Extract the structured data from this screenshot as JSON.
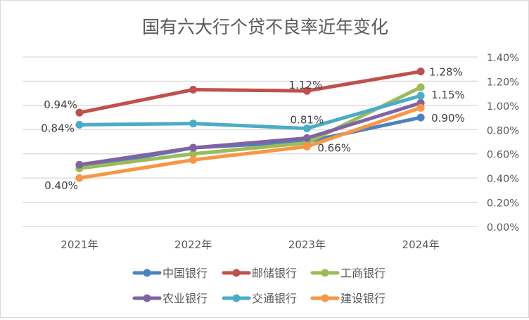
{
  "chart_data": {
    "type": "line",
    "title": "国有六大行个贷不良率近年变化",
    "xlabel": "",
    "ylabel": "",
    "categories": [
      "2021年",
      "2022年",
      "2023年",
      "2024年"
    ],
    "y_axis": {
      "position": "right",
      "ylim": [
        0,
        1.4
      ],
      "ticks": [
        0,
        0.2,
        0.4,
        0.6,
        0.8,
        1.0,
        1.2,
        1.4
      ],
      "tick_labels": [
        "0.00%",
        "0.20%",
        "0.40%",
        "0.60%",
        "0.80%",
        "1.00%",
        "1.20%",
        "1.40%"
      ],
      "unit": "%"
    },
    "grid": true,
    "legend_position": "bottom",
    "series": [
      {
        "name": "中国银行",
        "color": "#4f81bd",
        "values": [
          0.48,
          0.65,
          0.7,
          0.9
        ],
        "labels": [
          null,
          null,
          null,
          "0.90%"
        ]
      },
      {
        "name": "邮储银行",
        "color": "#c0504d",
        "values": [
          0.94,
          1.13,
          1.12,
          1.28
        ],
        "labels": [
          "0.94%",
          null,
          "1.12%",
          "1.28%"
        ]
      },
      {
        "name": "工商银行",
        "color": "#9bbb59",
        "values": [
          0.48,
          0.6,
          0.69,
          1.15
        ],
        "labels": [
          null,
          null,
          null,
          "1.15%"
        ]
      },
      {
        "name": "农业银行",
        "color": "#8064a2",
        "values": [
          0.51,
          0.65,
          0.73,
          1.02
        ],
        "labels": [
          null,
          null,
          null,
          null
        ]
      },
      {
        "name": "交通银行",
        "color": "#4bacc6",
        "values": [
          0.84,
          0.85,
          0.81,
          1.08
        ],
        "labels": [
          "0.84%",
          null,
          "0.81%",
          null
        ]
      },
      {
        "name": "建设银行",
        "color": "#f79646",
        "values": [
          0.4,
          0.55,
          0.66,
          0.98
        ],
        "labels": [
          "0.40%",
          null,
          "0.66%",
          null
        ]
      }
    ]
  }
}
